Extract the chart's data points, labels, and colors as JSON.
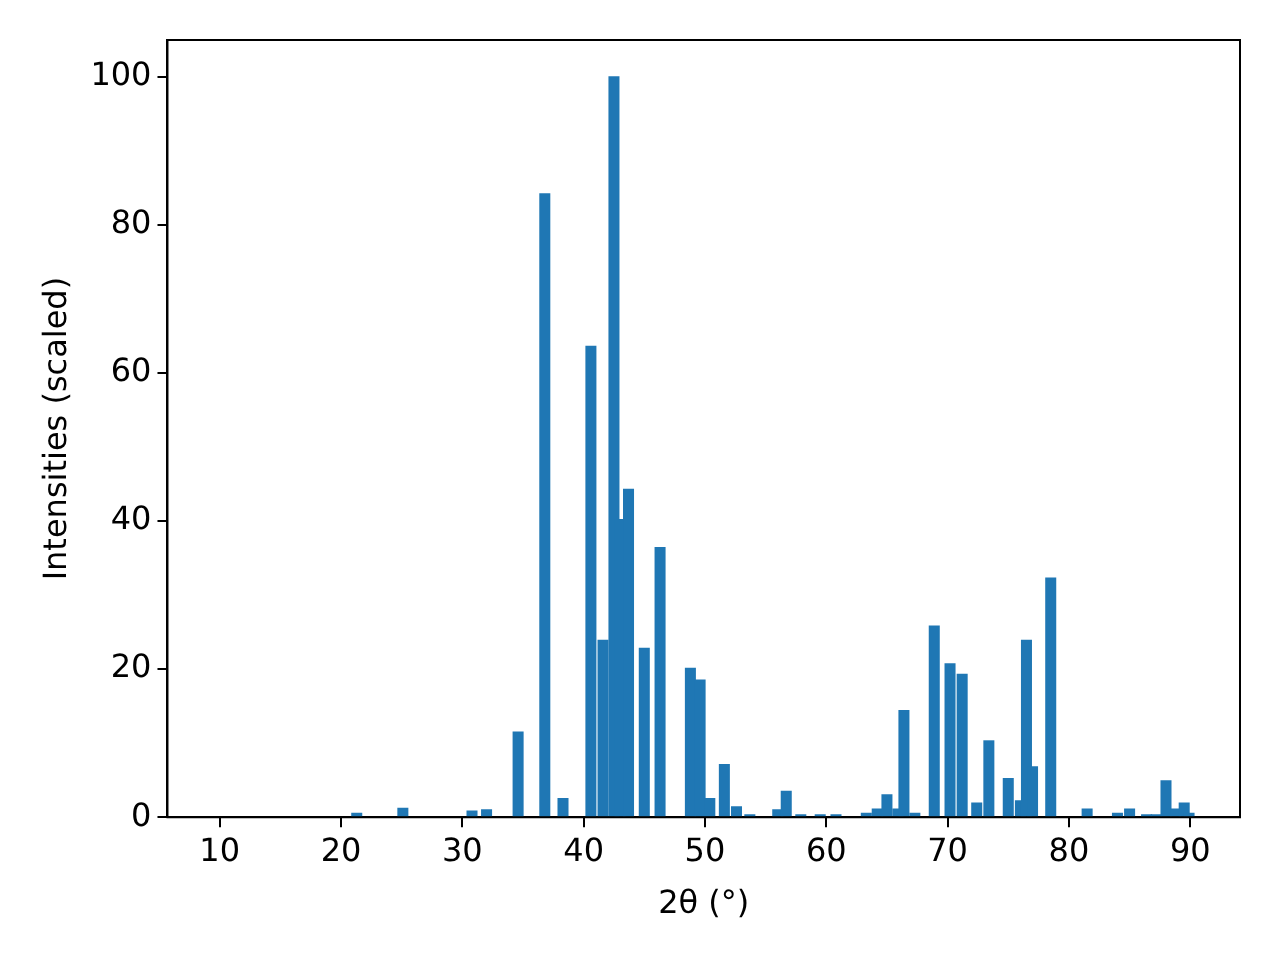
{
  "chart_data": {
    "type": "bar",
    "xlabel": "2θ (°)",
    "ylabel": "Intensities (scaled)",
    "x": [
      21.3,
      25.1,
      30.8,
      32.0,
      34.6,
      36.8,
      38.3,
      40.6,
      41.6,
      42.5,
      43.0,
      43.7,
      45.0,
      46.3,
      48.8,
      49.6,
      50.4,
      51.6,
      52.6,
      53.7,
      56.0,
      56.7,
      57.9,
      59.5,
      60.8,
      63.3,
      64.2,
      65.0,
      65.9,
      66.4,
      67.3,
      68.9,
      70.2,
      71.2,
      72.4,
      73.4,
      75.0,
      76.0,
      76.5,
      77.0,
      78.5,
      81.5,
      84.0,
      85.0,
      86.4,
      87.2,
      88.0,
      88.8,
      89.5,
      89.9
    ],
    "values": [
      0.5,
      1.2,
      0.8,
      1.0,
      11.5,
      84.2,
      2.5,
      63.6,
      23.9,
      100,
      40.2,
      44.3,
      22.8,
      36.4,
      20.1,
      18.5,
      2.5,
      7.1,
      1.4,
      0.3,
      1.0,
      3.5,
      0.3,
      0.3,
      0.3,
      0.5,
      1.1,
      3.0,
      1.1,
      14.4,
      0.5,
      25.8,
      20.7,
      19.3,
      1.9,
      10.3,
      5.2,
      2.2,
      23.9,
      6.8,
      32.3,
      1.1,
      0.5,
      1.1,
      0.3,
      0.3,
      4.9,
      1.1,
      1.9,
      0.5
    ],
    "color": "#1f77b4",
    "xlim": [
      5.7,
      94.1
    ],
    "xticks": [
      10,
      20,
      30,
      40,
      50,
      60,
      70,
      80,
      90
    ],
    "ylim": [
      0,
      105
    ],
    "yticks": [
      0,
      20,
      40,
      60,
      80,
      100
    ],
    "grid": false,
    "legend": false
  }
}
